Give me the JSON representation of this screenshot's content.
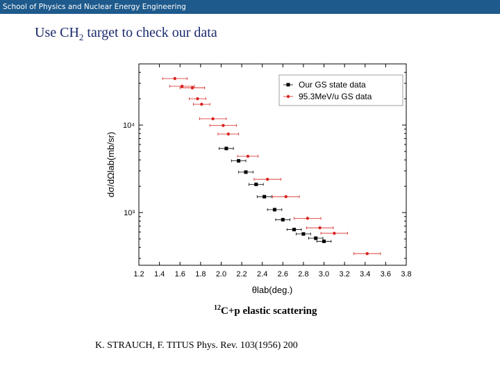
{
  "header": {
    "institution": "School of Physics and Nuclear Energy Engineering"
  },
  "slide": {
    "title_pre": "Use CH",
    "title_sub": "2",
    "title_post": " target to check our data",
    "caption_sup": "12",
    "caption_text": "C+p elastic scattering",
    "reference": "K. STRAUCH, F. TITUS  Phys. Rev. 103(1956) 200"
  },
  "colors": {
    "banner": "#1e5a8c",
    "title": "#1a2a6c",
    "our_data": "#000000",
    "ref_data": "#d9231f"
  },
  "chart_data": {
    "type": "scatter",
    "xlabel": "θlab(deg.)",
    "ylabel": "dσ/dΩlab(mb/sr)",
    "x_ticks": [
      "1.2",
      "1.4",
      "1.6",
      "1.8",
      "2.0",
      "2.2",
      "2.4",
      "2.6",
      "2.8",
      "3.0",
      "3.2",
      "3.4",
      "3.6",
      "3.8"
    ],
    "y_tick_labels": [
      "10⁴",
      "10³"
    ],
    "y_tick_values": [
      10000,
      1000
    ],
    "xlim": [
      1.2,
      3.8
    ],
    "ylim": [
      250,
      50000
    ],
    "y_scale": "log",
    "legend_position": "top-right",
    "series": [
      {
        "name": "Our GS state data",
        "color": "#000000",
        "marker": "square",
        "points": [
          {
            "x": 2.05,
            "y": 5400,
            "xerr": 0.07
          },
          {
            "x": 2.17,
            "y": 3900,
            "xerr": 0.07
          },
          {
            "x": 2.24,
            "y": 2900,
            "xerr": 0.07
          },
          {
            "x": 2.34,
            "y": 2100,
            "xerr": 0.07
          },
          {
            "x": 2.42,
            "y": 1520,
            "xerr": 0.07
          },
          {
            "x": 2.52,
            "y": 1080,
            "xerr": 0.07
          },
          {
            "x": 2.6,
            "y": 830,
            "xerr": 0.07
          },
          {
            "x": 2.71,
            "y": 640,
            "xerr": 0.07
          },
          {
            "x": 2.8,
            "y": 570,
            "xerr": 0.07
          },
          {
            "x": 2.92,
            "y": 510,
            "xerr": 0.07
          },
          {
            "x": 3.0,
            "y": 470,
            "xerr": 0.07
          }
        ]
      },
      {
        "name": "95.3MeV/u GS data",
        "color": "#d9231f",
        "marker": "circle",
        "points": [
          {
            "x": 1.55,
            "y": 34000,
            "xerr": 0.12
          },
          {
            "x": 1.62,
            "y": 27800,
            "xerr": 0.12
          },
          {
            "x": 1.72,
            "y": 26600,
            "xerr": 0.12
          },
          {
            "x": 1.77,
            "y": 20000,
            "xerr": 0.08
          },
          {
            "x": 1.81,
            "y": 17300,
            "xerr": 0.08
          },
          {
            "x": 1.92,
            "y": 11800,
            "xerr": 0.13
          },
          {
            "x": 2.02,
            "y": 9900,
            "xerr": 0.13
          },
          {
            "x": 2.07,
            "y": 7900,
            "xerr": 0.1
          },
          {
            "x": 2.26,
            "y": 4400,
            "xerr": 0.1
          },
          {
            "x": 2.45,
            "y": 2400,
            "xerr": 0.13
          },
          {
            "x": 2.63,
            "y": 1520,
            "xerr": 0.13
          },
          {
            "x": 2.84,
            "y": 860,
            "xerr": 0.13
          },
          {
            "x": 2.96,
            "y": 670,
            "xerr": 0.13
          },
          {
            "x": 3.1,
            "y": 580,
            "xerr": 0.13
          },
          {
            "x": 3.42,
            "y": 340,
            "xerr": 0.13
          }
        ]
      }
    ]
  }
}
